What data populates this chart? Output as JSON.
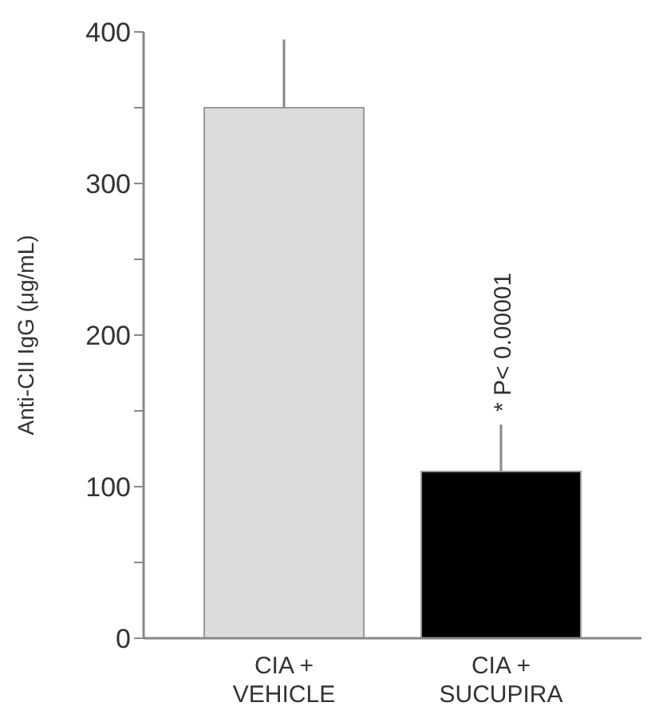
{
  "chart_data": {
    "type": "bar",
    "ylabel": "Anti-CII IgG (μg/mL)",
    "categories": [
      "CIA +\nVEHICLE",
      "CIA +\nSUCUPIRA"
    ],
    "values": [
      350,
      110
    ],
    "colors": [
      "#dcdcdc",
      "#000000"
    ],
    "errors": [
      [
        350,
        395
      ],
      [
        110,
        141
      ]
    ],
    "ylim": [
      0,
      400
    ],
    "yticks": [
      0,
      {
        "value": 50,
        "label": null
      },
      100,
      {
        "value": 150,
        "label": null
      },
      200,
      {
        "value": 250,
        "label": null
      },
      300,
      {
        "value": 350,
        "label": null
      },
      400
    ],
    "annotations": [
      "* P< 0.00001"
    ],
    "grid": false
  }
}
